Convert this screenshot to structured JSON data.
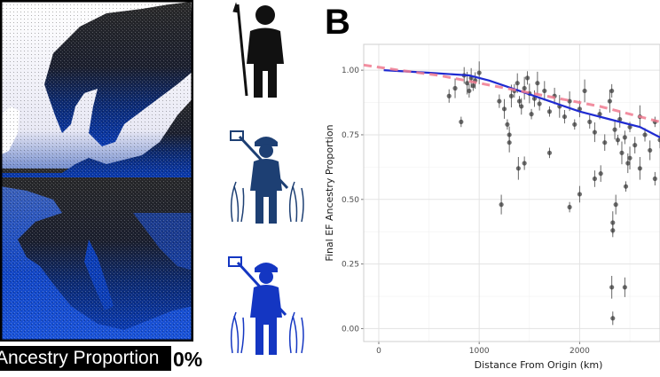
{
  "panel_letter": "B",
  "map_legend": {
    "label": "Ancestry Proportion",
    "min_label": "0%",
    "color_high": "#ffffff",
    "color_low": "#0a2f8c"
  },
  "figures": {
    "icons": [
      "hunter-gatherer-icon",
      "farmer-icon",
      "farmer-icon"
    ],
    "colors": [
      "#111111",
      "#1d3f73",
      "#1436c2"
    ]
  },
  "chart_data": {
    "type": "scatter",
    "xlabel": "Distance From Origin (km)",
    "ylabel": "Final EF Ancestry Proportion",
    "xlim": [
      -150,
      2800
    ],
    "ylim": [
      -0.05,
      1.1
    ],
    "x_ticks": [
      0,
      1000,
      2000
    ],
    "x_tick_labels": [
      "0",
      "1000",
      "2000"
    ],
    "y_ticks": [
      0,
      0.25,
      0.5,
      0.75,
      1.0
    ],
    "y_tick_labels": [
      "0.00",
      "0.25",
      "0.50",
      "0.75",
      "1.00"
    ],
    "grid": true,
    "point_color": "#333333",
    "series": [
      {
        "type": "line",
        "color": "#1f2bd1",
        "x": [
          50,
          500,
          900,
          1100,
          1400,
          1700,
          2000,
          2300,
          2600,
          2800
        ],
        "y": [
          1.0,
          0.99,
          0.98,
          0.96,
          0.92,
          0.88,
          0.84,
          0.81,
          0.78,
          0.74
        ]
      },
      {
        "type": "dashed-line",
        "color": "#f07a8f",
        "x": [
          -150,
          200,
          600,
          1000,
          1400,
          1800,
          2200,
          2600,
          2800
        ],
        "y": [
          1.02,
          1.0,
          0.98,
          0.95,
          0.92,
          0.89,
          0.86,
          0.82,
          0.8
        ]
      },
      {
        "type": "points",
        "x": [
          700,
          760,
          820,
          850,
          880,
          900,
          920,
          940,
          960,
          1000,
          1200,
          1250,
          1280,
          1300,
          1320,
          1350,
          1380,
          1400,
          1420,
          1450,
          1480,
          1500,
          1520,
          1550,
          1580,
          1600,
          1650,
          1700,
          1750,
          1800,
          1850,
          1900,
          1950,
          2000,
          2050,
          2100,
          2150,
          2200,
          2250,
          2300,
          2320,
          2350,
          2380,
          2400,
          2420,
          2450,
          2480,
          2500,
          2550,
          2600,
          2650,
          2700,
          2750,
          2800,
          1390,
          1450,
          1220,
          1900,
          2000,
          2330,
          2330,
          2360,
          2460,
          2210,
          2500,
          2750,
          1300,
          1700,
          2150,
          2600
        ],
        "y": [
          0.9,
          0.93,
          0.8,
          0.98,
          0.95,
          0.92,
          0.97,
          0.94,
          0.96,
          0.99,
          0.88,
          0.85,
          0.79,
          0.75,
          0.9,
          0.92,
          0.95,
          0.88,
          0.86,
          0.93,
          0.97,
          0.91,
          0.83,
          0.89,
          0.95,
          0.87,
          0.92,
          0.84,
          0.9,
          0.86,
          0.82,
          0.88,
          0.79,
          0.85,
          0.92,
          0.8,
          0.76,
          0.83,
          0.72,
          0.88,
          0.92,
          0.77,
          0.73,
          0.81,
          0.68,
          0.74,
          0.64,
          0.78,
          0.71,
          0.82,
          0.75,
          0.69,
          0.8,
          0.73,
          0.62,
          0.64,
          0.48,
          0.47,
          0.52,
          0.41,
          0.38,
          0.48,
          0.55,
          0.6,
          0.66,
          0.58,
          0.72,
          0.68,
          0.58,
          0.62
        ]
      },
      {
        "type": "points",
        "x": [
          2320,
          2330,
          2450
        ],
        "y": [
          0.16,
          0.04,
          0.16
        ]
      }
    ]
  }
}
